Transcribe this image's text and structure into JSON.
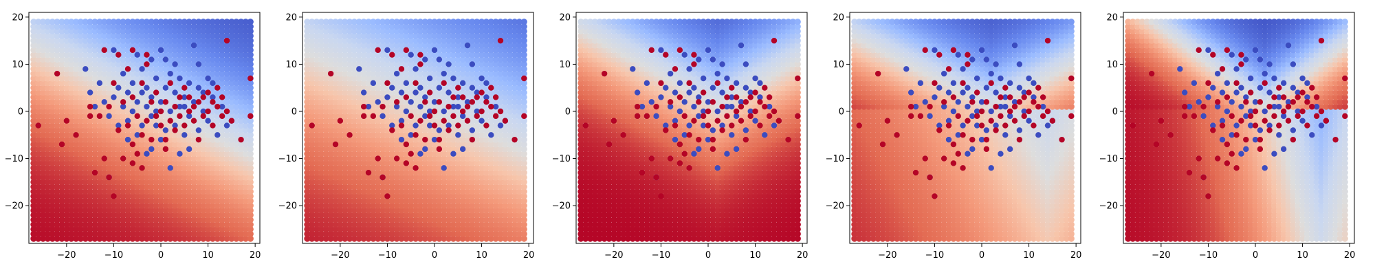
{
  "chart_data": [
    {
      "type": "scatter",
      "background": "decision-surface",
      "title": "",
      "xlabel": "",
      "ylabel": "",
      "xlim": [
        -28,
        21
      ],
      "ylim": [
        -28,
        21
      ],
      "xticks": [
        -20,
        -10,
        0,
        10,
        20
      ],
      "yticks": [
        -20,
        -10,
        0,
        10,
        20
      ],
      "surface": {
        "shape": "linear",
        "direction": [
          0.5,
          1
        ],
        "offset": 0,
        "scale": 9
      },
      "grid": false
    },
    {
      "type": "scatter",
      "background": "decision-surface",
      "title": "",
      "xlabel": "",
      "ylabel": "",
      "xlim": [
        -28,
        21
      ],
      "ylim": [
        -28,
        21
      ],
      "xticks": [
        -20,
        -10,
        0,
        10,
        20
      ],
      "yticks": [
        -20,
        -10,
        0,
        10,
        20
      ],
      "surface": {
        "shape": "linear",
        "direction": [
          0.45,
          1
        ],
        "offset": 0,
        "scale": 12
      },
      "grid": false
    },
    {
      "type": "scatter",
      "background": "decision-surface",
      "title": "",
      "xlabel": "",
      "ylabel": "",
      "xlim": [
        -28,
        21
      ],
      "ylim": [
        -28,
        21
      ],
      "xticks": [
        -20,
        -10,
        0,
        10,
        20
      ],
      "yticks": [
        -20,
        -10,
        0,
        10,
        20
      ],
      "surface": {
        "shape": "cone",
        "center": [
          2,
          1
        ],
        "slope": 0.55,
        "offset": 0,
        "scale": 7
      },
      "grid": false
    },
    {
      "type": "scatter",
      "background": "decision-surface",
      "title": "",
      "xlabel": "",
      "ylabel": "",
      "xlim": [
        -28,
        21
      ],
      "ylim": [
        -28,
        21
      ],
      "xticks": [
        -20,
        -10,
        0,
        10,
        20
      ],
      "yticks": [
        -20,
        -10,
        0,
        10,
        20
      ],
      "surface": {
        "shape": "wedge",
        "center": [
          2,
          1
        ],
        "slope": 0.5,
        "offset": 0,
        "scale": 6
      },
      "grid": false
    },
    {
      "type": "scatter",
      "background": "decision-surface",
      "title": "",
      "xlabel": "",
      "ylabel": "",
      "xlim": [
        -28,
        21
      ],
      "ylim": [
        -28,
        21
      ],
      "xticks": [
        -20,
        -10,
        0,
        10,
        20
      ],
      "yticks": [
        -20,
        -10,
        0,
        10,
        20
      ],
      "surface": {
        "shape": "v",
        "center": [
          2,
          1
        ],
        "slope": 0.75,
        "offset": 0,
        "scale": 5
      },
      "grid": false
    }
  ],
  "points": {
    "blue": [
      [
        -16,
        9
      ],
      [
        -15,
        4
      ],
      [
        -13,
        6
      ],
      [
        -12,
        2
      ],
      [
        -11,
        -1
      ],
      [
        -10,
        3
      ],
      [
        -9,
        5
      ],
      [
        -9,
        -3
      ],
      [
        -8,
        1
      ],
      [
        -8,
        8
      ],
      [
        -7,
        4
      ],
      [
        -7,
        -2
      ],
      [
        -6,
        0
      ],
      [
        -6,
        6
      ],
      [
        -5,
        2
      ],
      [
        -5,
        -5
      ],
      [
        -4,
        9
      ],
      [
        -4,
        -3
      ],
      [
        -3,
        1
      ],
      [
        -3,
        5
      ],
      [
        -2,
        -1
      ],
      [
        -2,
        3
      ],
      [
        -2,
        -8
      ],
      [
        -1,
        7
      ],
      [
        -1,
        0
      ],
      [
        0,
        2
      ],
      [
        0,
        -6
      ],
      [
        1,
        5
      ],
      [
        1,
        11
      ],
      [
        2,
        0
      ],
      [
        2,
        8
      ],
      [
        3,
        -3
      ],
      [
        3,
        4
      ],
      [
        4,
        1
      ],
      [
        4,
        7
      ],
      [
        5,
        -5
      ],
      [
        5,
        3
      ],
      [
        6,
        6
      ],
      [
        6,
        -1
      ],
      [
        7,
        2
      ],
      [
        7,
        14
      ],
      [
        8,
        10
      ],
      [
        8,
        -4
      ],
      [
        9,
        4
      ],
      [
        9,
        0
      ],
      [
        10,
        7
      ],
      [
        10,
        -2
      ],
      [
        11,
        3
      ],
      [
        12,
        -5
      ],
      [
        13,
        1
      ],
      [
        -11,
        -14
      ],
      [
        -3,
        -9
      ],
      [
        2,
        -12
      ],
      [
        4,
        -9
      ],
      [
        6,
        -8
      ],
      [
        -10,
        13
      ],
      [
        0,
        13
      ],
      [
        -5,
        12
      ],
      [
        3,
        10
      ],
      [
        1,
        -4
      ],
      [
        -1,
        -3
      ],
      [
        5,
        1
      ],
      [
        -7,
        -6
      ],
      [
        8,
        5
      ],
      [
        11,
        6
      ],
      [
        -4,
        4
      ],
      [
        -14,
        1
      ],
      [
        14,
        -3
      ],
      [
        15,
        -2
      ],
      [
        -2,
        11
      ]
    ],
    "red": [
      [
        -26,
        -3
      ],
      [
        -21,
        -7
      ],
      [
        -22,
        8
      ],
      [
        -20,
        -2
      ],
      [
        -18,
        -5
      ],
      [
        -15,
        1
      ],
      [
        -14,
        -13
      ],
      [
        -12,
        -10
      ],
      [
        -11,
        -14
      ],
      [
        -10,
        -18
      ],
      [
        -10,
        6
      ],
      [
        -9,
        -4
      ],
      [
        -8,
        -10
      ],
      [
        -8,
        2
      ],
      [
        -7,
        -3
      ],
      [
        -7,
        9
      ],
      [
        -6,
        -7
      ],
      [
        -6,
        3
      ],
      [
        -5,
        -1
      ],
      [
        -5,
        -9
      ],
      [
        -4,
        6
      ],
      [
        -4,
        -5
      ],
      [
        -3,
        -2
      ],
      [
        -3,
        10
      ],
      [
        -2,
        2
      ],
      [
        -2,
        -6
      ],
      [
        -1,
        -1
      ],
      [
        -1,
        4
      ],
      [
        0,
        0
      ],
      [
        0,
        -3
      ],
      [
        1,
        2
      ],
      [
        1,
        -6
      ],
      [
        2,
        -2
      ],
      [
        2,
        6
      ],
      [
        3,
        1
      ],
      [
        3,
        -4
      ],
      [
        4,
        3
      ],
      [
        4,
        -1
      ],
      [
        5,
        5
      ],
      [
        5,
        -3
      ],
      [
        6,
        0
      ],
      [
        6,
        3
      ],
      [
        7,
        -2
      ],
      [
        7,
        1
      ],
      [
        8,
        2
      ],
      [
        8,
        -6
      ],
      [
        9,
        -1
      ],
      [
        9,
        3
      ],
      [
        10,
        0
      ],
      [
        10,
        4
      ],
      [
        11,
        -3
      ],
      [
        11,
        2
      ],
      [
        12,
        1
      ],
      [
        12,
        5
      ],
      [
        13,
        -1
      ],
      [
        13,
        3
      ],
      [
        14,
        0
      ],
      [
        14,
        15
      ],
      [
        15,
        -2
      ],
      [
        17,
        -6
      ],
      [
        19,
        7
      ],
      [
        19,
        -1
      ],
      [
        -12,
        13
      ],
      [
        -9,
        12
      ],
      [
        -6,
        13
      ],
      [
        -3,
        12
      ],
      [
        -4,
        -12
      ],
      [
        -6,
        -11
      ],
      [
        1,
        -8
      ],
      [
        -13,
        -1
      ],
      [
        -11,
        1
      ],
      [
        -15,
        -1
      ]
    ]
  },
  "colors": {
    "cmap": [
      "#3b4cc0",
      "#6788ee",
      "#9abbff",
      "#c9d7f0",
      "#dddddd",
      "#f7c5ab",
      "#f49a7b",
      "#e36b53",
      "#b40426"
    ],
    "blue_point": "#3b4cc0",
    "red_point": "#b40426"
  }
}
